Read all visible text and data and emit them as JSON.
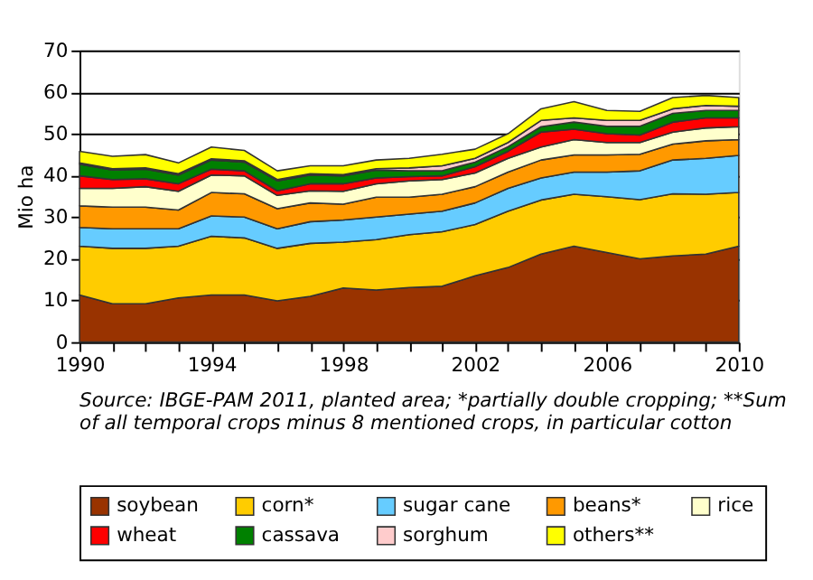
{
  "chart_data": {
    "type": "area",
    "stacked": true,
    "ylabel": "Mio ha",
    "x": [
      1990,
      1991,
      1992,
      1993,
      1994,
      1995,
      1996,
      1997,
      1998,
      1999,
      2000,
      2001,
      2002,
      2003,
      2004,
      2005,
      2006,
      2007,
      2008,
      2009,
      2010
    ],
    "xlim": [
      1990,
      2010
    ],
    "xticks": [
      1990,
      {
        "value": 1991,
        "label": null
      },
      {
        "value": 1992,
        "label": null
      },
      {
        "value": 1993,
        "label": null
      },
      1994,
      {
        "value": 1995,
        "label": null
      },
      {
        "value": 1996,
        "label": null
      },
      {
        "value": 1997,
        "label": null
      },
      1998,
      {
        "value": 1999,
        "label": null
      },
      {
        "value": 2000,
        "label": null
      },
      {
        "value": 2001,
        "label": null
      },
      2002,
      {
        "value": 2003,
        "label": null
      },
      {
        "value": 2004,
        "label": null
      },
      {
        "value": 2005,
        "label": null
      },
      2006,
      {
        "value": 2007,
        "label": null
      },
      {
        "value": 2008,
        "label": null
      },
      {
        "value": 2009,
        "label": null
      },
      2010
    ],
    "ylim": [
      0,
      70
    ],
    "yticks": [
      0,
      10,
      20,
      30,
      40,
      50,
      60,
      70
    ],
    "grid": "y",
    "legend": "bottom",
    "series": [
      {
        "name": "soybean",
        "color": "#993300",
        "values": [
          11.3,
          9.2,
          9.2,
          10.6,
          11.3,
          11.3,
          9.9,
          11.0,
          13.0,
          12.5,
          13.1,
          13.4,
          15.9,
          17.9,
          21.1,
          23.0,
          21.5,
          20.0,
          20.7,
          21.1,
          23.0
        ]
      },
      {
        "name": "corn*",
        "color": "#ffcc00",
        "values": [
          11.7,
          13.3,
          13.3,
          12.4,
          14.1,
          13.7,
          12.6,
          12.7,
          11.0,
          12.1,
          12.7,
          13.1,
          12.3,
          13.5,
          13.0,
          12.5,
          13.4,
          14.2,
          14.9,
          14.4,
          12.9
        ]
      },
      {
        "name": "sugar cane",
        "color": "#66ccff",
        "values": [
          4.5,
          4.7,
          4.7,
          4.2,
          4.9,
          5.0,
          4.7,
          5.2,
          5.3,
          5.4,
          4.9,
          4.9,
          5.2,
          5.5,
          5.3,
          5.3,
          5.9,
          6.9,
          8.1,
          8.6,
          8.9
        ]
      },
      {
        "name": "beans*",
        "color": "#ff9900",
        "values": [
          5.2,
          5.2,
          5.2,
          4.5,
          5.6,
          5.6,
          4.8,
          4.5,
          3.8,
          4.8,
          4.1,
          4.1,
          3.9,
          3.9,
          4.3,
          4.1,
          4.1,
          4.0,
          3.8,
          4.2,
          3.8
        ]
      },
      {
        "name": "rice",
        "color": "#ffffcc",
        "values": [
          4.2,
          4.5,
          4.9,
          4.5,
          4.2,
          4.3,
          3.2,
          2.9,
          3.1,
          3.2,
          3.9,
          3.5,
          3.3,
          3.3,
          3.1,
          3.7,
          3.0,
          2.8,
          2.9,
          3.1,
          3.1
        ]
      },
      {
        "name": "wheat",
        "color": "#ff0000",
        "values": [
          3.0,
          2.1,
          1.9,
          1.8,
          1.4,
          1.2,
          1.1,
          1.7,
          1.8,
          1.4,
          1.0,
          0.9,
          1.5,
          1.7,
          3.6,
          2.5,
          2.1,
          1.8,
          2.4,
          2.4,
          2.1
        ]
      },
      {
        "name": "cassava",
        "color": "#008000",
        "values": [
          2.8,
          2.3,
          2.3,
          2.1,
          2.2,
          2.1,
          2.4,
          2.1,
          1.9,
          1.9,
          1.4,
          1.2,
          1.1,
          1.1,
          1.3,
          1.7,
          1.8,
          2.1,
          2.1,
          1.8,
          1.8
        ]
      },
      {
        "name": "sorghum",
        "color": "#ffcccc",
        "values": [
          0.3,
          0.3,
          0.3,
          0.3,
          0.3,
          0.3,
          0.3,
          0.3,
          0.3,
          0.3,
          0.7,
          1.2,
          0.9,
          1.0,
          1.5,
          1.0,
          1.4,
          1.4,
          1.1,
          1.2,
          1.0
        ]
      },
      {
        "name": "others**",
        "color": "#ffff00",
        "values": [
          2.8,
          3.0,
          3.2,
          2.6,
          2.8,
          2.5,
          2.1,
          1.9,
          2.1,
          2.1,
          2.3,
          2.8,
          2.2,
          2.1,
          2.8,
          3.9,
          2.4,
          2.2,
          2.7,
          2.4,
          2.1
        ]
      }
    ],
    "annotations": [
      "Source: IBGE-PAM 2011, planted area; *partially double cropping; **Sum",
      "of all temporal crops minus 8 mentioned crops, in particular cotton"
    ]
  }
}
